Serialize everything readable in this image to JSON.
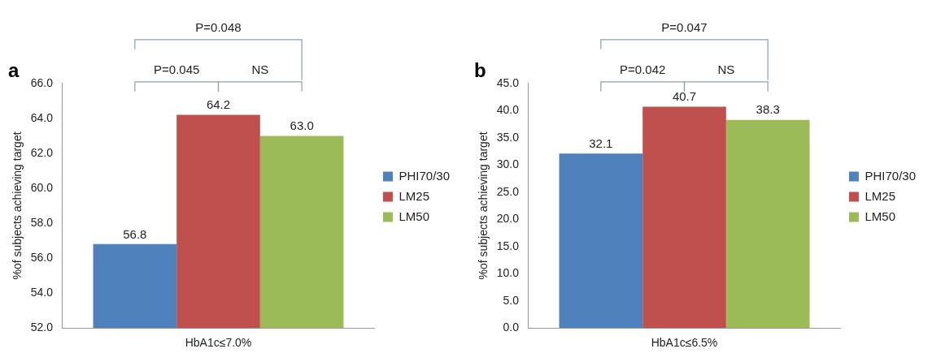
{
  "chart_data": [
    {
      "type": "bar",
      "title": "a",
      "categories": [
        "HbA1c≤7.0%"
      ],
      "ylabel": "%of subjects achieving target",
      "legend": "right",
      "series": [
        {
          "name": "PHI70/30",
          "color": "#4f81bd",
          "values": [
            56.8
          ],
          "value_labels": [
            "56.8"
          ]
        },
        {
          "name": "LM25",
          "color": "#c0504d",
          "values": [
            64.2
          ],
          "value_labels": [
            "64.2"
          ]
        },
        {
          "name": "LM50",
          "color": "#9bbb59",
          "values": [
            63.0
          ],
          "value_labels": [
            "63.0"
          ]
        }
      ],
      "ylim": [
        52,
        66
      ],
      "yticks": [
        {
          "value": 52,
          "label": "52.0"
        },
        {
          "value": 54,
          "label": "54.0"
        },
        {
          "value": 56,
          "label": "56.0"
        },
        {
          "value": 58,
          "label": "58.0"
        },
        {
          "value": 60,
          "label": "60.0"
        },
        {
          "value": 62,
          "label": "62.0"
        },
        {
          "value": 64,
          "label": "64.0"
        },
        {
          "value": 66,
          "label": "66.0"
        }
      ],
      "annotations": [
        "P=0.048",
        "P=0.045",
        "NS"
      ]
    },
    {
      "type": "bar",
      "title": "b",
      "categories": [
        "HbA1c≤6.5%"
      ],
      "ylabel": "%of subjects achieving target",
      "legend": "right",
      "series": [
        {
          "name": "PHI70/30",
          "color": "#4f81bd",
          "values": [
            32.1
          ],
          "value_labels": [
            "32.1"
          ]
        },
        {
          "name": "LM25",
          "color": "#c0504d",
          "values": [
            40.7
          ],
          "value_labels": [
            "40.7"
          ]
        },
        {
          "name": "LM50",
          "color": "#9bbb59",
          "values": [
            38.3
          ],
          "value_labels": [
            "38.3"
          ]
        }
      ],
      "ylim": [
        0,
        45
      ],
      "yticks": [
        {
          "value": 0,
          "label": "0.0"
        },
        {
          "value": 5,
          "label": "5.0"
        },
        {
          "value": 10,
          "label": "10.0"
        },
        {
          "value": 15,
          "label": "15.0"
        },
        {
          "value": 20,
          "label": "20.0"
        },
        {
          "value": 25,
          "label": "25.0"
        },
        {
          "value": 30,
          "label": "30.0"
        },
        {
          "value": 35,
          "label": "35.0"
        },
        {
          "value": 40,
          "label": "40.0"
        },
        {
          "value": 45,
          "label": "45.0"
        }
      ],
      "annotations": [
        "P=0.047",
        "P=0.042",
        "NS"
      ]
    }
  ]
}
